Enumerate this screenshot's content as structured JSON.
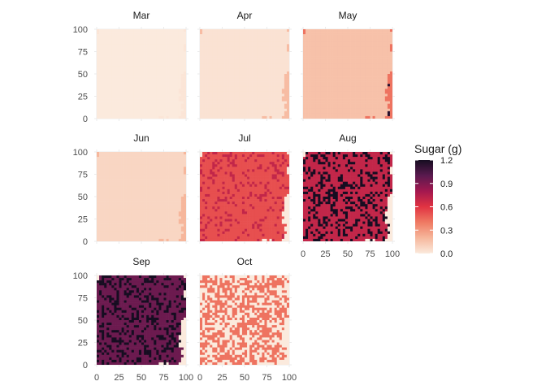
{
  "chart_data": {
    "type": "heatmap",
    "title": "",
    "xlabel": "",
    "ylabel": "",
    "xlim": [
      0,
      100
    ],
    "ylim": [
      0,
      100
    ],
    "x_ticks": [
      0,
      25,
      50,
      75,
      100
    ],
    "y_ticks": [
      0,
      25,
      50,
      75,
      100
    ],
    "x_tick_labels": [
      "0",
      "25",
      "50",
      "75",
      "100"
    ],
    "y_tick_labels": [
      "0",
      "25",
      "50",
      "75",
      "100"
    ],
    "grid": true,
    "legend": {
      "title": "Sugar (g)",
      "position": "right",
      "min": 0.0,
      "max": 1.2,
      "ticks": [
        0.0,
        0.3,
        0.6,
        0.9,
        1.2
      ],
      "tick_labels": [
        "0.0",
        "0.3",
        "0.6",
        "0.9",
        "1.2"
      ],
      "colors": [
        "#fbeadd",
        "#f6b79c",
        "#ef7a63",
        "#e13342",
        "#a3184f",
        "#5a1a4f",
        "#160d21"
      ]
    },
    "panels": [
      {
        "label": "Mar",
        "base_value": 0.02,
        "patch_value": 0.0,
        "dots": "none"
      },
      {
        "label": "Apr",
        "base_value": 0.18,
        "patch_value": 0.03,
        "dots": "none"
      },
      {
        "label": "May",
        "base_value": 0.42,
        "patch_value": 0.16,
        "dots": "dark"
      },
      {
        "label": "Jun",
        "base_value": 0.2,
        "patch_value": 0.08,
        "dots": "dark"
      },
      {
        "label": "Jul",
        "base_value": 0.0,
        "patch_value": 0.52,
        "dots": "red"
      },
      {
        "label": "Aug",
        "base_value": 0.0,
        "patch_value": 0.7,
        "dots": "dense"
      },
      {
        "label": "Sep",
        "base_value": 0.0,
        "patch_value": 0.95,
        "dots": "dense"
      },
      {
        "label": "Oct",
        "base_value": 0.0,
        "patch_value": 0.42,
        "dots": "sparse"
      }
    ]
  }
}
